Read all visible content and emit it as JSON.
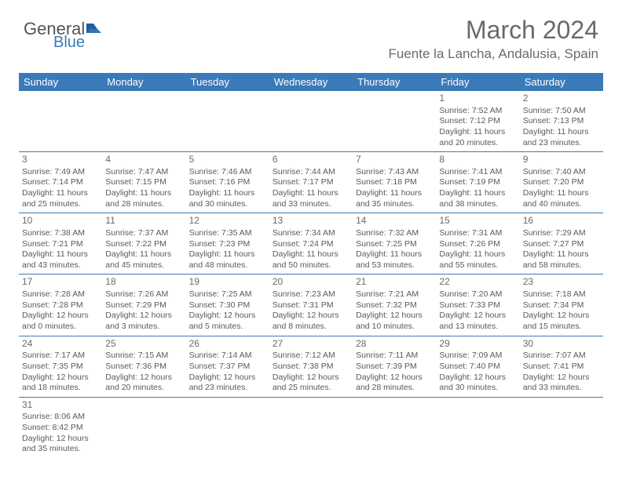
{
  "logo": {
    "text1": "General",
    "text2": "Blue"
  },
  "title": "March 2024",
  "location": "Fuente la Lancha, Andalusia, Spain",
  "colors": {
    "header_bg": "#3a7ab8",
    "header_text": "#ffffff",
    "border": "#3a7ab8",
    "text": "#5a5a5a"
  },
  "dayHeaders": [
    "Sunday",
    "Monday",
    "Tuesday",
    "Wednesday",
    "Thursday",
    "Friday",
    "Saturday"
  ],
  "weeks": [
    [
      null,
      null,
      null,
      null,
      null,
      {
        "n": "1",
        "sr": "Sunrise: 7:52 AM",
        "ss": "Sunset: 7:12 PM",
        "dl": "Daylight: 11 hours and 20 minutes."
      },
      {
        "n": "2",
        "sr": "Sunrise: 7:50 AM",
        "ss": "Sunset: 7:13 PM",
        "dl": "Daylight: 11 hours and 23 minutes."
      }
    ],
    [
      {
        "n": "3",
        "sr": "Sunrise: 7:49 AM",
        "ss": "Sunset: 7:14 PM",
        "dl": "Daylight: 11 hours and 25 minutes."
      },
      {
        "n": "4",
        "sr": "Sunrise: 7:47 AM",
        "ss": "Sunset: 7:15 PM",
        "dl": "Daylight: 11 hours and 28 minutes."
      },
      {
        "n": "5",
        "sr": "Sunrise: 7:46 AM",
        "ss": "Sunset: 7:16 PM",
        "dl": "Daylight: 11 hours and 30 minutes."
      },
      {
        "n": "6",
        "sr": "Sunrise: 7:44 AM",
        "ss": "Sunset: 7:17 PM",
        "dl": "Daylight: 11 hours and 33 minutes."
      },
      {
        "n": "7",
        "sr": "Sunrise: 7:43 AM",
        "ss": "Sunset: 7:18 PM",
        "dl": "Daylight: 11 hours and 35 minutes."
      },
      {
        "n": "8",
        "sr": "Sunrise: 7:41 AM",
        "ss": "Sunset: 7:19 PM",
        "dl": "Daylight: 11 hours and 38 minutes."
      },
      {
        "n": "9",
        "sr": "Sunrise: 7:40 AM",
        "ss": "Sunset: 7:20 PM",
        "dl": "Daylight: 11 hours and 40 minutes."
      }
    ],
    [
      {
        "n": "10",
        "sr": "Sunrise: 7:38 AM",
        "ss": "Sunset: 7:21 PM",
        "dl": "Daylight: 11 hours and 43 minutes."
      },
      {
        "n": "11",
        "sr": "Sunrise: 7:37 AM",
        "ss": "Sunset: 7:22 PM",
        "dl": "Daylight: 11 hours and 45 minutes."
      },
      {
        "n": "12",
        "sr": "Sunrise: 7:35 AM",
        "ss": "Sunset: 7:23 PM",
        "dl": "Daylight: 11 hours and 48 minutes."
      },
      {
        "n": "13",
        "sr": "Sunrise: 7:34 AM",
        "ss": "Sunset: 7:24 PM",
        "dl": "Daylight: 11 hours and 50 minutes."
      },
      {
        "n": "14",
        "sr": "Sunrise: 7:32 AM",
        "ss": "Sunset: 7:25 PM",
        "dl": "Daylight: 11 hours and 53 minutes."
      },
      {
        "n": "15",
        "sr": "Sunrise: 7:31 AM",
        "ss": "Sunset: 7:26 PM",
        "dl": "Daylight: 11 hours and 55 minutes."
      },
      {
        "n": "16",
        "sr": "Sunrise: 7:29 AM",
        "ss": "Sunset: 7:27 PM",
        "dl": "Daylight: 11 hours and 58 minutes."
      }
    ],
    [
      {
        "n": "17",
        "sr": "Sunrise: 7:28 AM",
        "ss": "Sunset: 7:28 PM",
        "dl": "Daylight: 12 hours and 0 minutes."
      },
      {
        "n": "18",
        "sr": "Sunrise: 7:26 AM",
        "ss": "Sunset: 7:29 PM",
        "dl": "Daylight: 12 hours and 3 minutes."
      },
      {
        "n": "19",
        "sr": "Sunrise: 7:25 AM",
        "ss": "Sunset: 7:30 PM",
        "dl": "Daylight: 12 hours and 5 minutes."
      },
      {
        "n": "20",
        "sr": "Sunrise: 7:23 AM",
        "ss": "Sunset: 7:31 PM",
        "dl": "Daylight: 12 hours and 8 minutes."
      },
      {
        "n": "21",
        "sr": "Sunrise: 7:21 AM",
        "ss": "Sunset: 7:32 PM",
        "dl": "Daylight: 12 hours and 10 minutes."
      },
      {
        "n": "22",
        "sr": "Sunrise: 7:20 AM",
        "ss": "Sunset: 7:33 PM",
        "dl": "Daylight: 12 hours and 13 minutes."
      },
      {
        "n": "23",
        "sr": "Sunrise: 7:18 AM",
        "ss": "Sunset: 7:34 PM",
        "dl": "Daylight: 12 hours and 15 minutes."
      }
    ],
    [
      {
        "n": "24",
        "sr": "Sunrise: 7:17 AM",
        "ss": "Sunset: 7:35 PM",
        "dl": "Daylight: 12 hours and 18 minutes."
      },
      {
        "n": "25",
        "sr": "Sunrise: 7:15 AM",
        "ss": "Sunset: 7:36 PM",
        "dl": "Daylight: 12 hours and 20 minutes."
      },
      {
        "n": "26",
        "sr": "Sunrise: 7:14 AM",
        "ss": "Sunset: 7:37 PM",
        "dl": "Daylight: 12 hours and 23 minutes."
      },
      {
        "n": "27",
        "sr": "Sunrise: 7:12 AM",
        "ss": "Sunset: 7:38 PM",
        "dl": "Daylight: 12 hours and 25 minutes."
      },
      {
        "n": "28",
        "sr": "Sunrise: 7:11 AM",
        "ss": "Sunset: 7:39 PM",
        "dl": "Daylight: 12 hours and 28 minutes."
      },
      {
        "n": "29",
        "sr": "Sunrise: 7:09 AM",
        "ss": "Sunset: 7:40 PM",
        "dl": "Daylight: 12 hours and 30 minutes."
      },
      {
        "n": "30",
        "sr": "Sunrise: 7:07 AM",
        "ss": "Sunset: 7:41 PM",
        "dl": "Daylight: 12 hours and 33 minutes."
      }
    ],
    [
      {
        "n": "31",
        "sr": "Sunrise: 8:06 AM",
        "ss": "Sunset: 8:42 PM",
        "dl": "Daylight: 12 hours and 35 minutes."
      },
      null,
      null,
      null,
      null,
      null,
      null
    ]
  ]
}
